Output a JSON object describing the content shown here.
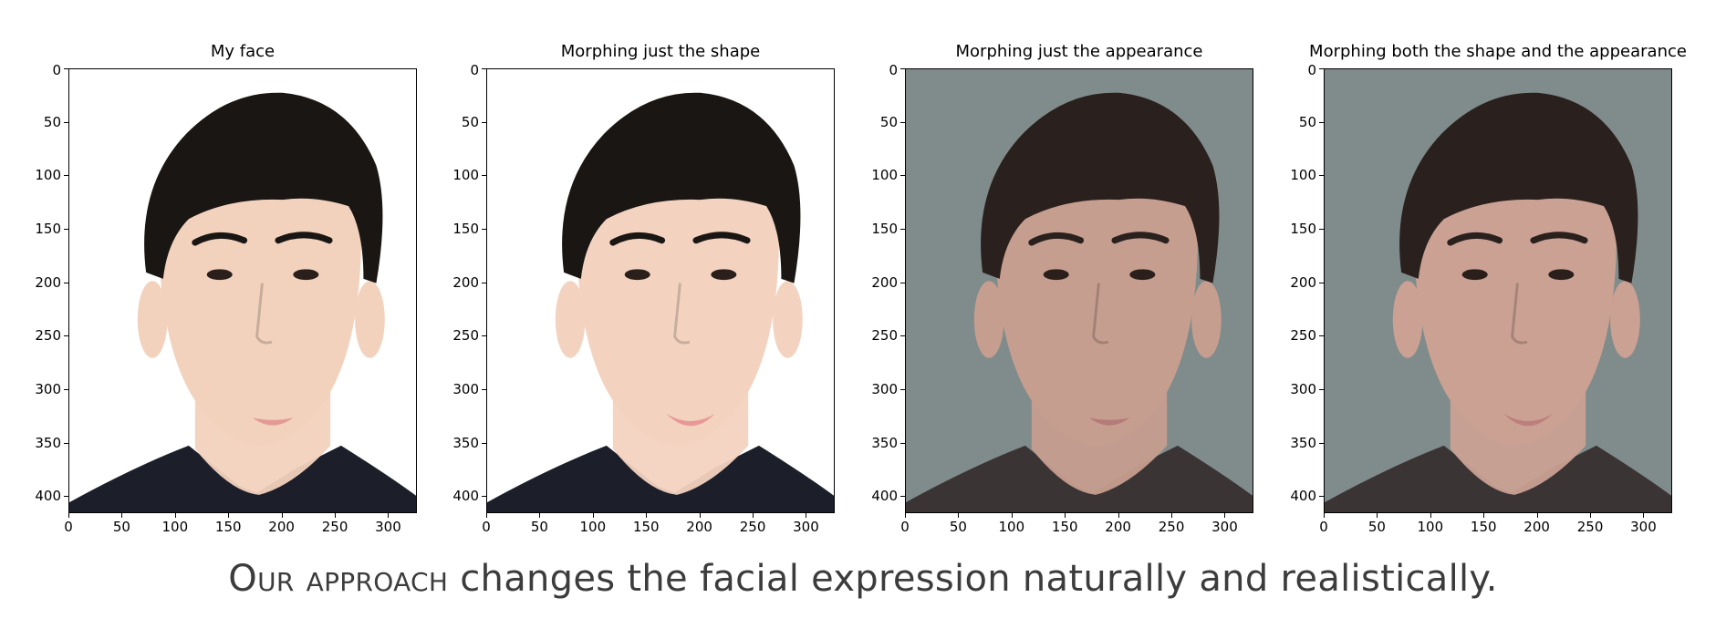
{
  "panels": [
    {
      "title": "My face",
      "background": "#ffffff",
      "skin": "#f2d2bd",
      "lips": "#e39a97",
      "hair": "#1a1613",
      "shirt": "#1c1f2a",
      "mouth": "neutral"
    },
    {
      "title": "Morphing just the shape",
      "background": "#ffffff",
      "skin": "#f3d3c0",
      "lips": "#e89898",
      "hair": "#1a1613",
      "shirt": "#1c1f2a",
      "mouth": "smile"
    },
    {
      "title": "Morphing just the appearance",
      "background": "#7f8c8b",
      "skin": "#c69e8f",
      "lips": "#b57b78",
      "hair": "#2a201d",
      "shirt": "#3b3435",
      "mouth": "neutral"
    },
    {
      "title": "Morphing both the shape and the appearance",
      "background": "#7f8c8b",
      "skin": "#caa193",
      "lips": "#bc7f7c",
      "hair": "#2a201d",
      "shirt": "#3b3435",
      "mouth": "smile"
    }
  ],
  "y_ticks": [
    "0",
    "50",
    "100",
    "150",
    "200",
    "250",
    "300",
    "350",
    "400"
  ],
  "x_ticks": [
    "0",
    "50",
    "100",
    "150",
    "200",
    "250",
    "300"
  ],
  "caption": {
    "smallcaps": "Our approach",
    "rest": " changes the facial expression naturally and realistically."
  }
}
